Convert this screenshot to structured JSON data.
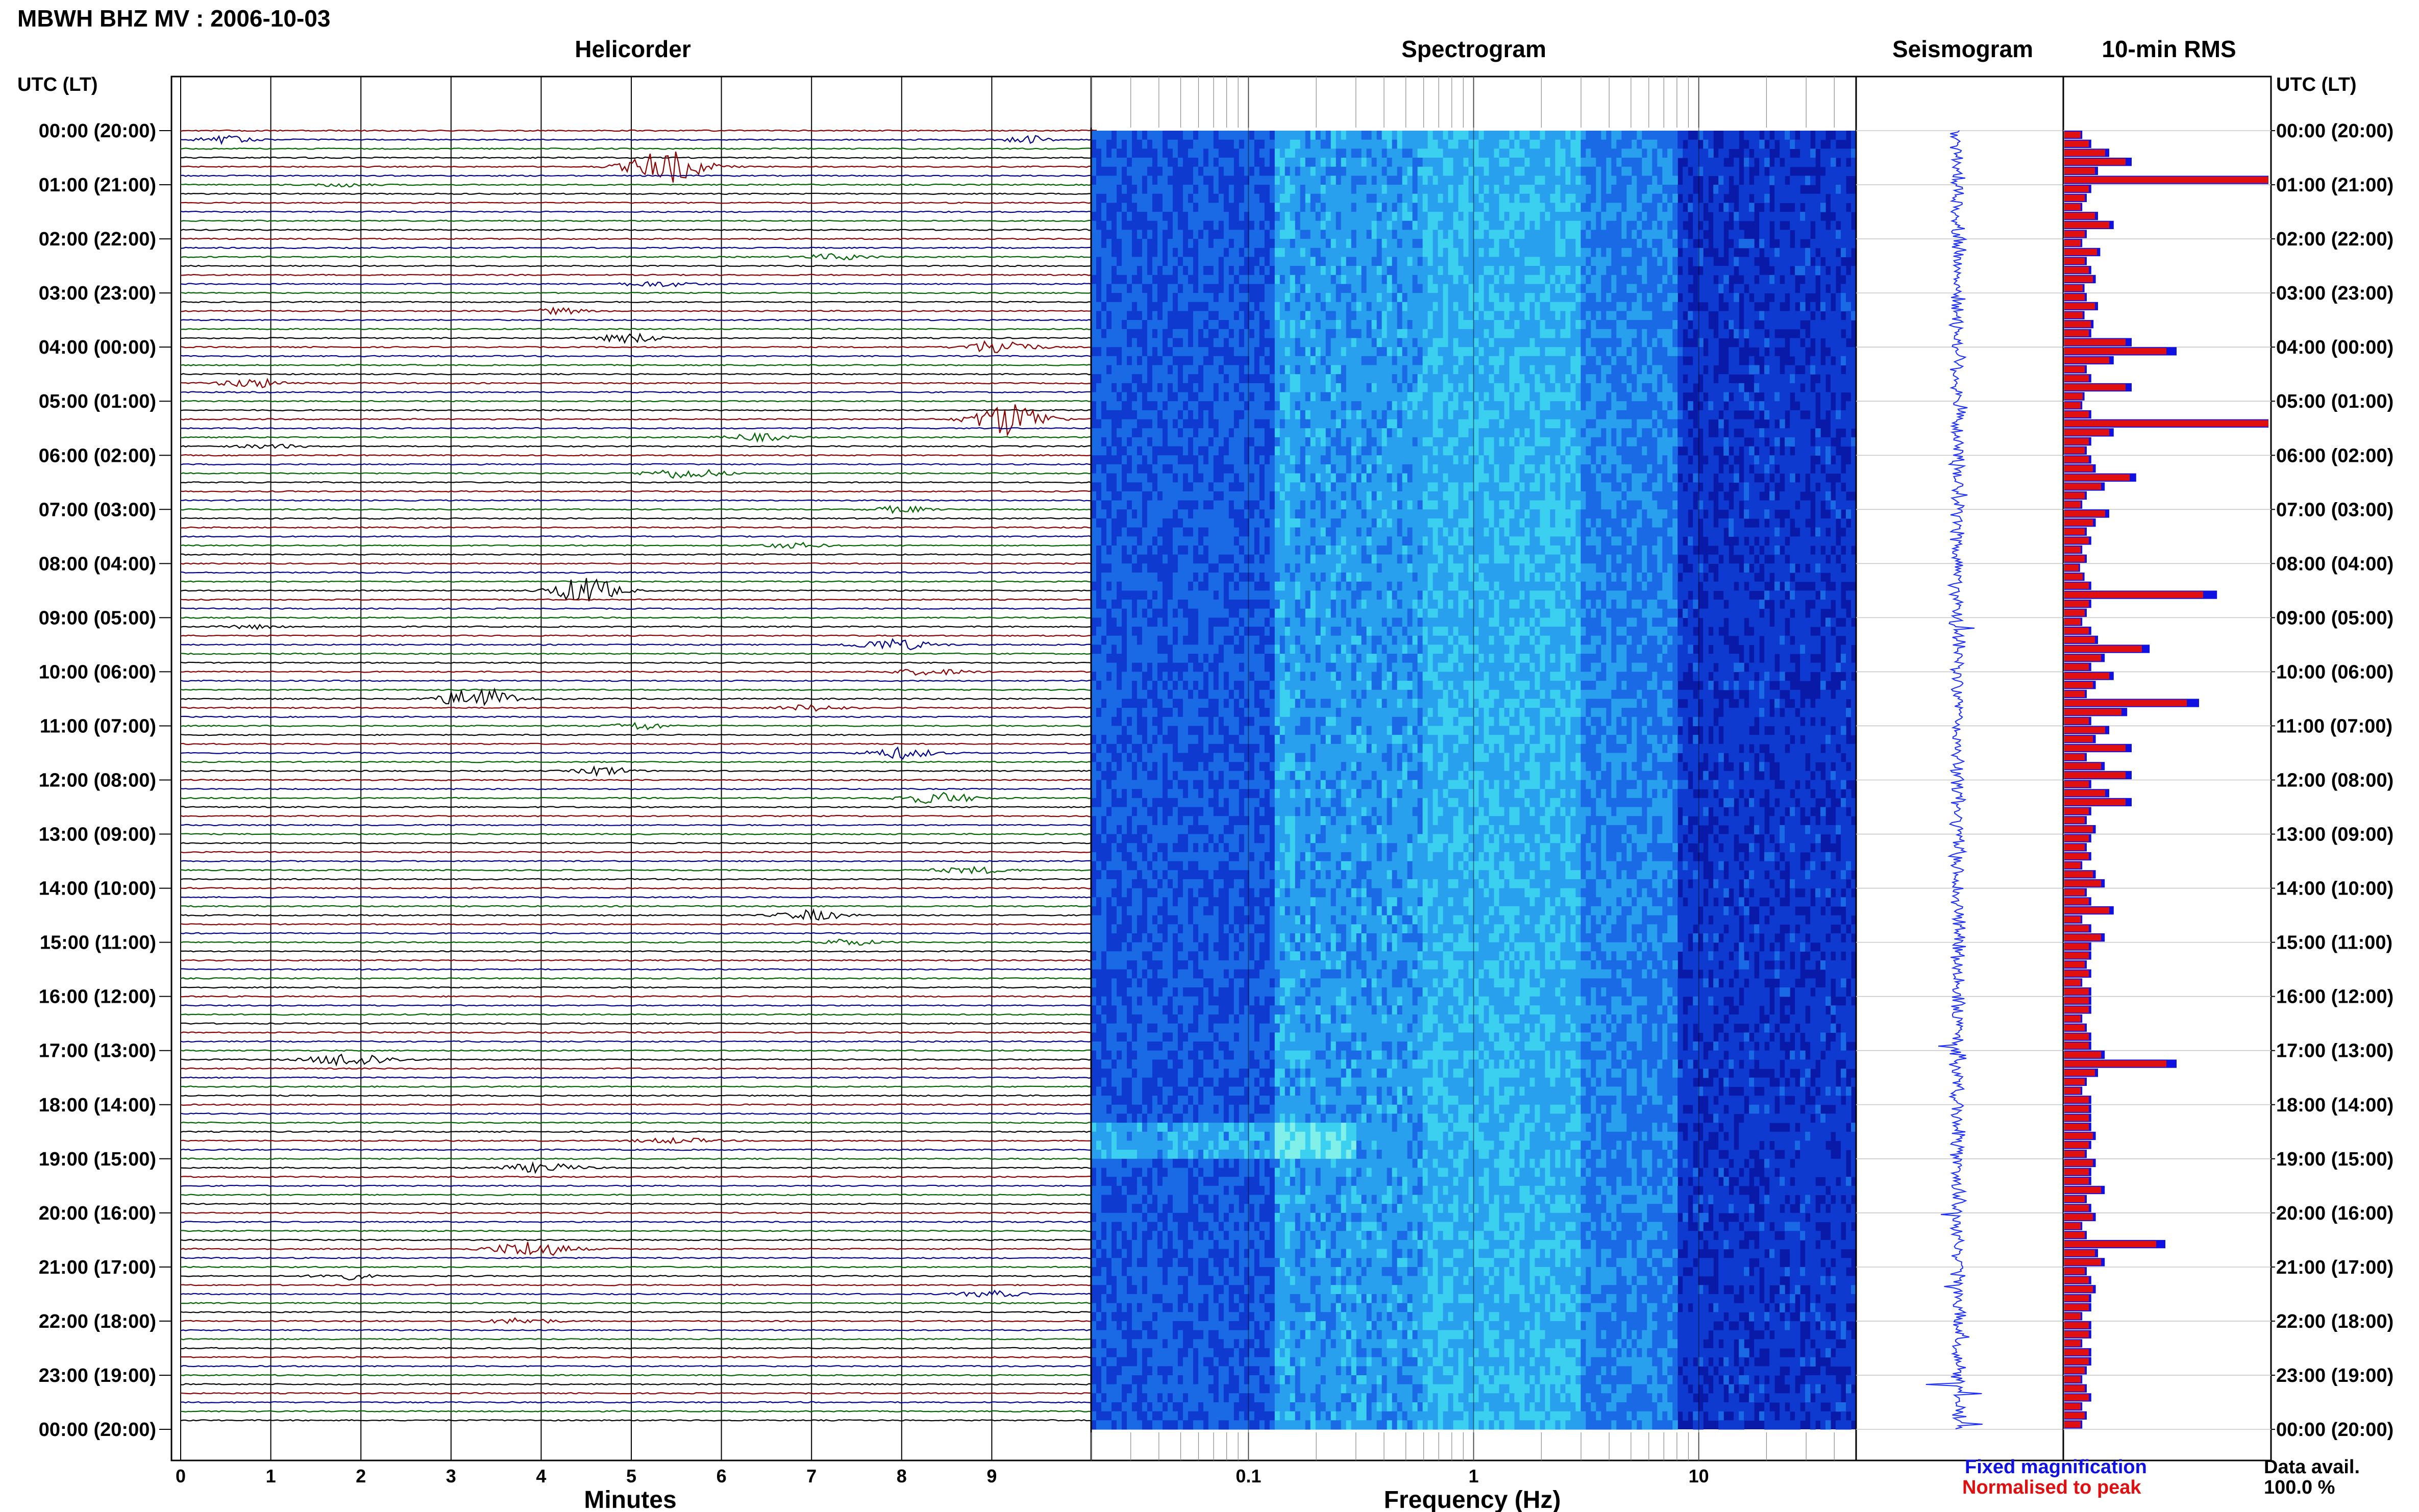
{
  "title": "MBWH BHZ MV : 2006-10-03",
  "panels": {
    "helicorder": "Helicorder",
    "spectrogram": "Spectrogram",
    "seismogram": "Seismogram",
    "rms": "10-min RMS"
  },
  "time_axis_label": "UTC (LT)",
  "legend": {
    "fixed": "Fixed magnification",
    "normalised": "Normalised to peak",
    "avail_label": "Data avail.",
    "avail_value": "100.0 %"
  },
  "colors": {
    "trace_cycle": [
      "#8b0000",
      "#00008b",
      "#006400",
      "#000000"
    ],
    "rms_fixed": "#1010e0",
    "rms_norm": "#e01010",
    "seismogram": "#1a2cff"
  },
  "chart_data": [
    {
      "type": "line",
      "title": "Helicorder",
      "xlabel": "Minutes",
      "x_ticks": [
        0,
        1,
        2,
        3,
        4,
        5,
        6,
        7,
        8,
        9
      ],
      "xlim": [
        0,
        10
      ],
      "y_ticks": [
        "00:00 (20:00)",
        "01:00 (21:00)",
        "02:00 (22:00)",
        "03:00 (23:00)",
        "04:00 (00:00)",
        "05:00 (01:00)",
        "06:00 (02:00)",
        "07:00 (03:00)",
        "08:00 (04:00)",
        "09:00 (05:00)",
        "10:00 (06:00)",
        "11:00 (07:00)",
        "12:00 (08:00)",
        "13:00 (09:00)",
        "14:00 (10:00)",
        "15:00 (11:00)",
        "16:00 (12:00)",
        "17:00 (13:00)",
        "18:00 (14:00)",
        "19:00 (15:00)",
        "20:00 (16:00)",
        "21:00 (17:00)",
        "22:00 (18:00)",
        "23:00 (19:00)",
        "00:00 (20:00)"
      ],
      "rows": 144,
      "row_minutes": 10,
      "events": [
        {
          "row": 1,
          "minute": 0.5,
          "amp": 0.35,
          "width": 0.4
        },
        {
          "row": 1,
          "minute": 9.4,
          "amp": 0.45,
          "width": 0.3
        },
        {
          "row": 4,
          "minute": 5.4,
          "amp": 1.6,
          "width": 0.6
        },
        {
          "row": 6,
          "minute": 1.8,
          "amp": 0.2,
          "width": 0.4
        },
        {
          "row": 14,
          "minute": 7.3,
          "amp": 0.3,
          "width": 0.5
        },
        {
          "row": 17,
          "minute": 5.3,
          "amp": 0.25,
          "width": 0.6
        },
        {
          "row": 20,
          "minute": 4.2,
          "amp": 0.3,
          "width": 0.4
        },
        {
          "row": 23,
          "minute": 5.0,
          "amp": 0.45,
          "width": 0.5
        },
        {
          "row": 24,
          "minute": 9.1,
          "amp": 0.8,
          "width": 0.5
        },
        {
          "row": 28,
          "minute": 0.8,
          "amp": 0.45,
          "width": 0.5
        },
        {
          "row": 32,
          "minute": 9.2,
          "amp": 1.7,
          "width": 0.55
        },
        {
          "row": 34,
          "minute": 6.4,
          "amp": 0.35,
          "width": 0.5
        },
        {
          "row": 35,
          "minute": 1.0,
          "amp": 0.2,
          "width": 0.5
        },
        {
          "row": 38,
          "minute": 5.6,
          "amp": 0.5,
          "width": 0.6
        },
        {
          "row": 42,
          "minute": 8.0,
          "amp": 0.35,
          "width": 0.4
        },
        {
          "row": 46,
          "minute": 6.8,
          "amp": 0.25,
          "width": 0.5
        },
        {
          "row": 51,
          "minute": 4.5,
          "amp": 1.4,
          "width": 0.5
        },
        {
          "row": 55,
          "minute": 0.8,
          "amp": 0.2,
          "width": 0.4
        },
        {
          "row": 57,
          "minute": 7.9,
          "amp": 0.55,
          "width": 0.6
        },
        {
          "row": 60,
          "minute": 8.3,
          "amp": 0.3,
          "width": 0.6
        },
        {
          "row": 63,
          "minute": 3.3,
          "amp": 1.2,
          "width": 0.55
        },
        {
          "row": 64,
          "minute": 7.0,
          "amp": 0.3,
          "width": 0.5
        },
        {
          "row": 66,
          "minute": 5.1,
          "amp": 0.4,
          "width": 0.4
        },
        {
          "row": 69,
          "minute": 8.0,
          "amp": 0.55,
          "width": 0.5
        },
        {
          "row": 71,
          "minute": 4.7,
          "amp": 0.45,
          "width": 0.4
        },
        {
          "row": 74,
          "minute": 8.4,
          "amp": 0.55,
          "width": 0.6
        },
        {
          "row": 82,
          "minute": 8.8,
          "amp": 0.3,
          "width": 0.6
        },
        {
          "row": 87,
          "minute": 7.0,
          "amp": 0.5,
          "width": 0.5
        },
        {
          "row": 90,
          "minute": 7.4,
          "amp": 0.3,
          "width": 0.5
        },
        {
          "row": 103,
          "minute": 1.9,
          "amp": 0.7,
          "width": 0.6
        },
        {
          "row": 112,
          "minute": 5.5,
          "amp": 0.25,
          "width": 0.6
        },
        {
          "row": 115,
          "minute": 4.0,
          "amp": 0.45,
          "width": 0.6
        },
        {
          "row": 124,
          "minute": 3.9,
          "amp": 0.8,
          "width": 0.6
        },
        {
          "row": 127,
          "minute": 1.8,
          "amp": 0.35,
          "width": 0.4
        },
        {
          "row": 129,
          "minute": 9.0,
          "amp": 0.3,
          "width": 0.5
        },
        {
          "row": 132,
          "minute": 3.8,
          "amp": 0.3,
          "width": 0.5
        }
      ]
    },
    {
      "type": "heatmap",
      "title": "Spectrogram",
      "xlabel": "Frequency (Hz)",
      "x_scale": "log",
      "xlim": [
        0.02,
        50
      ],
      "x_ticks": [
        "0.1",
        "1",
        "10"
      ],
      "colormap": [
        "#0a1aa8",
        "#0e3ad0",
        "#1a6ae6",
        "#28a0ee",
        "#3cd0f0",
        "#80f0e8"
      ],
      "energy_bands": [
        {
          "f_low": 0.02,
          "f_high": 0.13,
          "level": 1.6
        },
        {
          "f_low": 0.13,
          "f_high": 0.16,
          "level": 3.2
        },
        {
          "f_low": 0.16,
          "f_high": 0.6,
          "level": 2.9
        },
        {
          "f_low": 0.6,
          "f_high": 3.0,
          "level": 3.4
        },
        {
          "f_low": 3.0,
          "f_high": 8.0,
          "level": 2.4
        },
        {
          "f_low": 8.0,
          "f_high": 50,
          "level": 0.8
        }
      ],
      "highlight_hours": [
        18.2,
        18.9
      ]
    },
    {
      "type": "line",
      "title": "Seismogram",
      "hourly_peaks": [
        0.4,
        1.0,
        0.5,
        0.4,
        0.7,
        1.1,
        0.6,
        0.5,
        0.4,
        1.0,
        0.6,
        0.7,
        0.5,
        0.5,
        0.4,
        0.4,
        0.3,
        0.4,
        0.3,
        0.4,
        0.4,
        0.4,
        0.5,
        0.5
      ]
    },
    {
      "type": "bar",
      "title": "10-min RMS",
      "bins": 144,
      "series": [
        {
          "name": "Fixed magnification",
          "color": "#1010e0"
        },
        {
          "name": "Normalised to peak",
          "color": "#e01010"
        }
      ],
      "values": [
        0.08,
        0.12,
        0.2,
        0.3,
        0.15,
        1.0,
        0.12,
        0.1,
        0.08,
        0.15,
        0.22,
        0.1,
        0.08,
        0.16,
        0.1,
        0.12,
        0.14,
        0.09,
        0.1,
        0.15,
        0.09,
        0.13,
        0.12,
        0.3,
        0.5,
        0.22,
        0.1,
        0.12,
        0.3,
        0.09,
        0.08,
        0.12,
        1.0,
        0.22,
        0.12,
        0.1,
        0.12,
        0.14,
        0.32,
        0.18,
        0.1,
        0.08,
        0.2,
        0.14,
        0.1,
        0.12,
        0.08,
        0.1,
        0.07,
        0.09,
        0.12,
        0.68,
        0.12,
        0.1,
        0.08,
        0.12,
        0.15,
        0.38,
        0.18,
        0.12,
        0.22,
        0.14,
        0.1,
        0.6,
        0.28,
        0.12,
        0.2,
        0.14,
        0.3,
        0.1,
        0.18,
        0.3,
        0.12,
        0.2,
        0.3,
        0.12,
        0.1,
        0.14,
        0.12,
        0.1,
        0.12,
        0.08,
        0.14,
        0.18,
        0.1,
        0.12,
        0.22,
        0.08,
        0.12,
        0.18,
        0.12,
        0.12,
        0.1,
        0.12,
        0.08,
        0.12,
        0.12,
        0.12,
        0.08,
        0.1,
        0.12,
        0.12,
        0.18,
        0.5,
        0.15,
        0.1,
        0.08,
        0.12,
        0.12,
        0.12,
        0.12,
        0.14,
        0.12,
        0.1,
        0.14,
        0.12,
        0.12,
        0.18,
        0.1,
        0.12,
        0.14,
        0.08,
        0.1,
        0.45,
        0.15,
        0.18,
        0.1,
        0.12,
        0.14,
        0.12,
        0.12,
        0.08,
        0.12,
        0.12,
        0.08,
        0.12,
        0.12,
        0.1,
        0.08,
        0.1,
        0.12,
        0.08,
        0.1,
        0.08
      ]
    }
  ]
}
